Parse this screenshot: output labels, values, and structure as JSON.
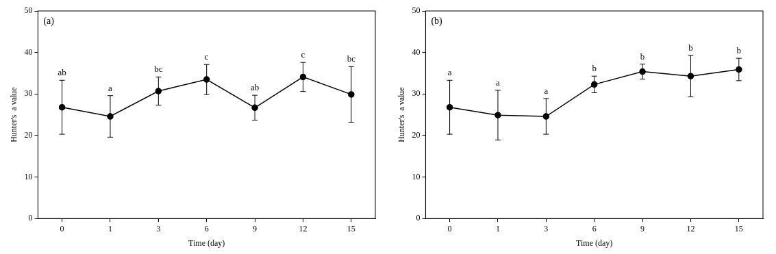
{
  "chart_data": [
    {
      "type": "line",
      "title": "(a)",
      "x_label": "Time (day)",
      "y_label": "Hunter's  a value",
      "categories": [
        "0",
        "1",
        "3",
        "6",
        "9",
        "12",
        "15"
      ],
      "values": [
        26.8,
        24.6,
        30.7,
        33.5,
        26.7,
        34.1,
        29.9
      ],
      "errors": [
        6.5,
        5.0,
        3.4,
        3.6,
        3.0,
        3.5,
        6.7
      ],
      "annotations": [
        "ab",
        "a",
        "bc",
        "c",
        "ab",
        "c",
        "bc"
      ],
      "color": "#000000",
      "marker": "circle",
      "line_style": "solid",
      "ylim": [
        0,
        50
      ],
      "yticks": [
        0,
        10,
        20,
        30,
        40,
        50
      ],
      "grid": false
    },
    {
      "type": "line",
      "title": "(b)",
      "x_label": "Time (day)",
      "y_label": "Hunter's  a value",
      "categories": [
        "0",
        "1",
        "3",
        "6",
        "9",
        "12",
        "15"
      ],
      "values": [
        26.8,
        24.9,
        24.6,
        32.3,
        35.4,
        34.3,
        35.9
      ],
      "errors": [
        6.5,
        6.0,
        4.3,
        2.0,
        1.8,
        5.0,
        2.7
      ],
      "annotations": [
        "a",
        "a",
        "a",
        "b",
        "b",
        "b",
        "b"
      ],
      "color": "#000000",
      "marker": "circle",
      "line_style": "solid",
      "ylim": [
        0,
        50
      ],
      "yticks": [
        0,
        10,
        20,
        30,
        40,
        50
      ],
      "grid": false
    }
  ]
}
